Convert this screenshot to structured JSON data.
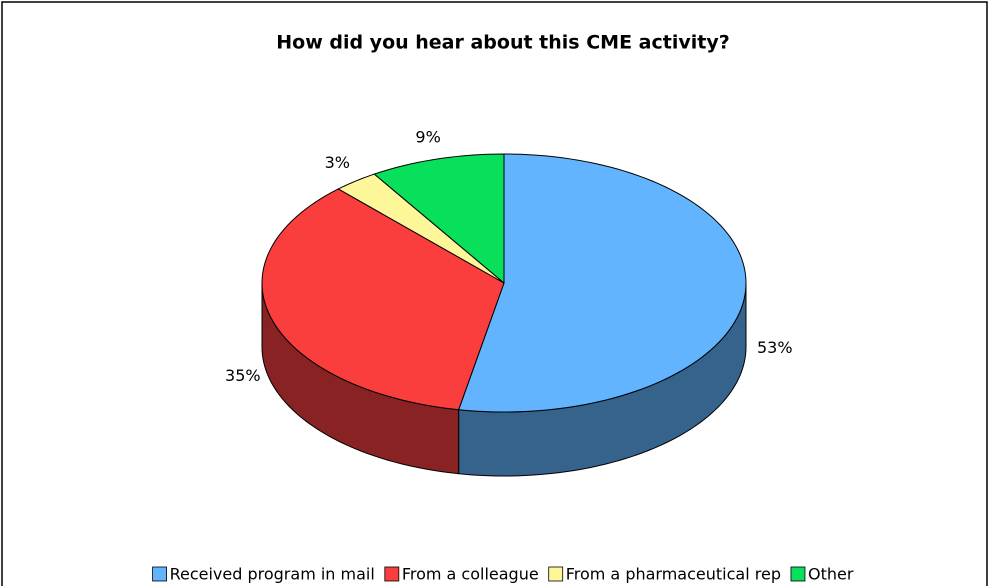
{
  "chart_data": {
    "type": "pie3d",
    "title": "How did you hear about this CME activity?",
    "categories": [
      "Received program in mail",
      "From a colleague",
      "From a pharmaceutical rep",
      "Other"
    ],
    "values": [
      53,
      35,
      3,
      9
    ],
    "value_labels": [
      "53%",
      "35%",
      "3%",
      "9%"
    ],
    "colors": [
      "#62b4fe",
      "#f93e3d",
      "#fdf79a",
      "#08e05b"
    ],
    "legend": "bottom"
  }
}
